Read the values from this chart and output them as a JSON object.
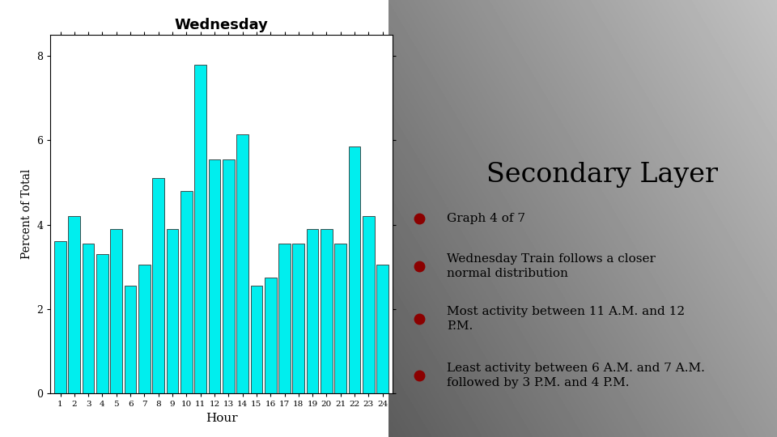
{
  "title": "Wednesday",
  "xlabel": "Hour",
  "ylabel": "Percent of Total",
  "hours": [
    1,
    2,
    3,
    4,
    5,
    6,
    7,
    8,
    9,
    10,
    11,
    12,
    13,
    14,
    15,
    16,
    17,
    18,
    19,
    20,
    21,
    22,
    23,
    24
  ],
  "values": [
    3.6,
    4.2,
    3.55,
    3.3,
    3.9,
    2.55,
    3.05,
    5.1,
    3.9,
    4.8,
    7.8,
    5.55,
    5.55,
    6.15,
    2.55,
    2.75,
    3.55,
    3.55,
    3.9,
    3.9,
    3.55,
    5.85,
    4.2,
    3.05
  ],
  "bar_color": "#00EEEE",
  "bar_edge_color": "#333333",
  "ylim": [
    0,
    8.5
  ],
  "yticks": [
    0,
    2,
    4,
    6,
    8
  ],
  "secondary_title": "Secondary Layer",
  "bullet_color": "#8B0000",
  "bullet_points": [
    "Graph 4 of 7",
    "Wednesday Train follows a closer\nnormal distribution",
    "Most activity between 11 A.M. and 12\nP.M.",
    "Least activity between 6 A.M. and 7 A.M.\nfollowed by 3 P.M. and 4 P.M."
  ]
}
